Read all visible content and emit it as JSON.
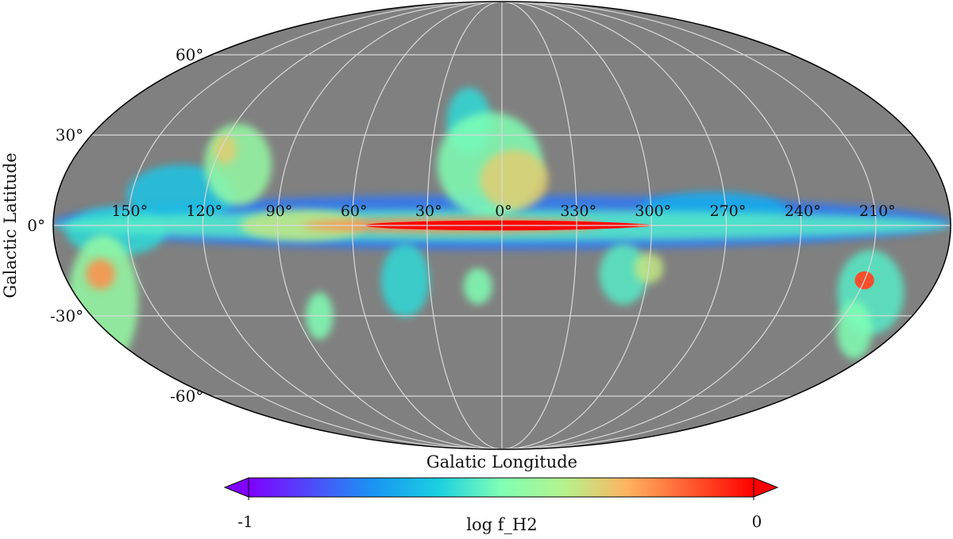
{
  "chart_data": {
    "type": "heatmap",
    "projection": "mollweide",
    "background_color": "#808080",
    "xlabel": "Galatic Longitude",
    "ylabel": "Galactic Latitude",
    "longitude_ticks": [
      {
        "value": 150,
        "label": "150°"
      },
      {
        "value": 120,
        "label": "120°"
      },
      {
        "value": 90,
        "label": "90°"
      },
      {
        "value": 60,
        "label": "60°"
      },
      {
        "value": 30,
        "label": "30°"
      },
      {
        "value": 0,
        "label": "0°"
      },
      {
        "value": 330,
        "label": "330°"
      },
      {
        "value": 300,
        "label": "300°"
      },
      {
        "value": 270,
        "label": "270°"
      },
      {
        "value": 240,
        "label": "240°"
      },
      {
        "value": 210,
        "label": "210°"
      }
    ],
    "latitude_ticks": [
      {
        "value": 60,
        "label": "60°"
      },
      {
        "value": 30,
        "label": "30°"
      },
      {
        "value": 0,
        "label": "0°"
      },
      {
        "value": -30,
        "label": "-30°"
      },
      {
        "value": -60,
        "label": "-60°"
      }
    ],
    "grid": true,
    "colorbar": {
      "label": "log f_H2",
      "min_label": "-1",
      "max_label": "0",
      "range": [
        -1,
        0
      ],
      "colormap": "rainbow",
      "extend": "both"
    },
    "regions": [
      {
        "l": 0,
        "b": 0,
        "dl": 55,
        "db": 1.6,
        "value": 0.0
      },
      {
        "l": 340,
        "b": 0,
        "dl": 40,
        "db": 1.2,
        "value": -0.08
      },
      {
        "l": 20,
        "b": 0,
        "dl": 60,
        "db": 2.5,
        "value": -0.2
      },
      {
        "l": 0,
        "b": 0,
        "dl": 180,
        "db": 5,
        "value": -0.55
      },
      {
        "l": 0,
        "b": 1,
        "dl": 180,
        "db": 9,
        "value": -0.8
      },
      {
        "l": 5,
        "b": 20,
        "dl": 22,
        "db": 18,
        "value": -0.5
      },
      {
        "l": 355,
        "b": 15,
        "dl": 14,
        "db": 10,
        "value": -0.3
      },
      {
        "l": 15,
        "b": 35,
        "dl": 10,
        "db": 12,
        "value": -0.6
      },
      {
        "l": 110,
        "b": 20,
        "dl": 14,
        "db": 14,
        "value": -0.45
      },
      {
        "l": 118,
        "b": 25,
        "dl": 5,
        "db": 5,
        "value": -0.3
      },
      {
        "l": 130,
        "b": 10,
        "dl": 22,
        "db": 10,
        "value": -0.65
      },
      {
        "l": 155,
        "b": -2,
        "dl": 20,
        "db": 8,
        "value": -0.6
      },
      {
        "l": 170,
        "b": -25,
        "dl": 15,
        "db": 22,
        "value": -0.45
      },
      {
        "l": 165,
        "b": -16,
        "dl": 6,
        "db": 5,
        "value": -0.2
      },
      {
        "l": 310,
        "b": -16,
        "dl": 10,
        "db": 10,
        "value": -0.55
      },
      {
        "l": 300,
        "b": -14,
        "dl": 6,
        "db": 5,
        "value": -0.35
      },
      {
        "l": 205,
        "b": -22,
        "dl": 14,
        "db": 14,
        "value": -0.55
      },
      {
        "l": 210,
        "b": -18,
        "dl": 4,
        "db": 3,
        "value": -0.1
      },
      {
        "l": 40,
        "b": -18,
        "dl": 10,
        "db": 12,
        "value": -0.6
      },
      {
        "l": 80,
        "b": -30,
        "dl": 6,
        "db": 8,
        "value": -0.5
      },
      {
        "l": 275,
        "b": 5,
        "dl": 30,
        "db": 6,
        "value": -0.7
      },
      {
        "l": 240,
        "b": 0,
        "dl": 20,
        "db": 4,
        "value": -0.8
      },
      {
        "l": 80,
        "b": 0,
        "dl": 25,
        "db": 5,
        "value": -0.35
      },
      {
        "l": 10,
        "b": -20,
        "dl": 6,
        "db": 6,
        "value": -0.5
      },
      {
        "l": 200,
        "b": -35,
        "dl": 8,
        "db": 10,
        "value": -0.5
      }
    ]
  }
}
